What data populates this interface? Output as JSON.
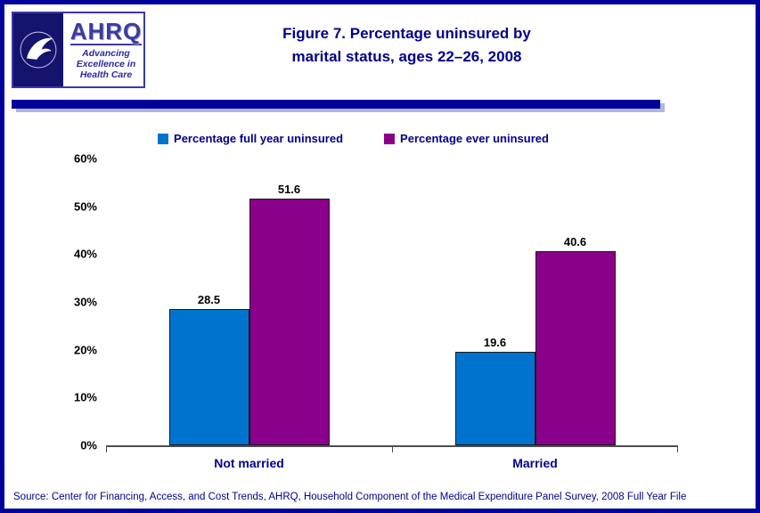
{
  "header": {
    "logo": {
      "ahrq_text": "AHRQ",
      "tagline": "Advancing Excellence in Health Care"
    },
    "title_line1": "Figure 7. Percentage uninsured by",
    "title_line2": "marital status, ages 22–26, 2008"
  },
  "chart_data": {
    "type": "bar",
    "title": "Figure 7. Percentage uninsured by marital status, ages 22–26, 2008",
    "categories": [
      "Not married",
      "Married"
    ],
    "series": [
      {
        "name": "Percentage full year uninsured",
        "color": "#0073CF",
        "values": [
          28.5,
          19.6
        ]
      },
      {
        "name": "Percentage ever uninsured",
        "color": "#8A008A",
        "values": [
          51.6,
          40.6
        ]
      }
    ],
    "xlabel": "",
    "ylabel": "",
    "ylim": [
      0,
      60
    ],
    "ytick_step": 10,
    "ytick_suffix": "%",
    "legend_position": "top",
    "grid": false
  },
  "colors": {
    "page_border": "#00009C",
    "title_text": "#00008B",
    "header_rule": "#00009C"
  },
  "source": "Source: Center for Financing, Access, and Cost Trends, AHRQ, Household Component of the Medical Expenditure Panel Survey, 2008 Full Year File"
}
